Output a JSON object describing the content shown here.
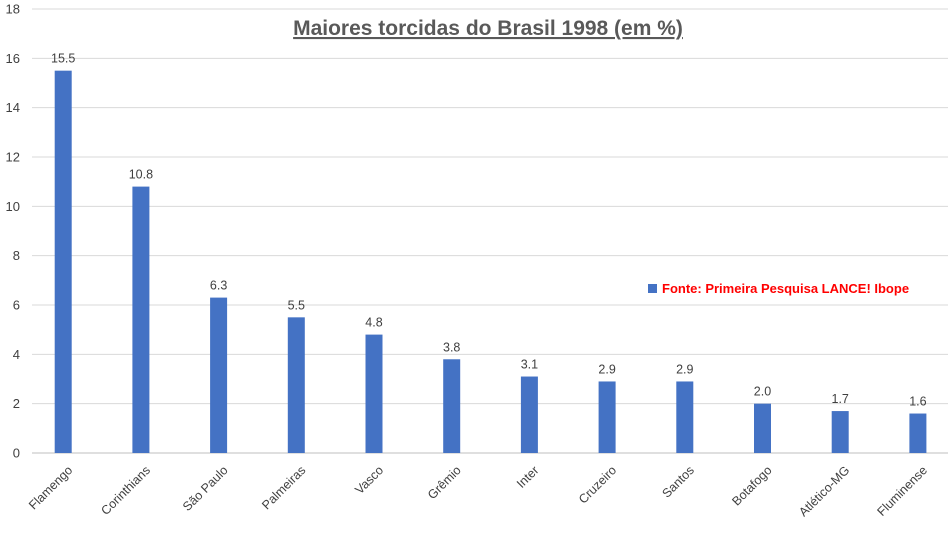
{
  "chart_data": {
    "type": "bar",
    "title": "Maiores torcidas do Brasil 1998 (em %)",
    "categories": [
      "Flamengo",
      "Corinthians",
      "São Paulo",
      "Palmeiras",
      "Vasco",
      "Grêmio",
      "Inter",
      "Cruzeiro",
      "Santos",
      "Botafogo",
      "Atlético-MG",
      "Fluminense"
    ],
    "series": [
      {
        "name": "Fonte:  Primeira Pesquisa LANCE! Ibope",
        "values": [
          15.5,
          10.8,
          6.3,
          5.5,
          4.8,
          3.8,
          3.1,
          2.9,
          2.9,
          2.0,
          1.7,
          1.6
        ],
        "color": "#4472c4"
      }
    ],
    "data_labels": [
      "15.5",
      "10.8",
      "6.3",
      "5.5",
      "4.8",
      "3.8",
      "3.1",
      "2.9",
      "2.9",
      "2.0",
      "1.7",
      "1.6"
    ],
    "ylim": [
      0,
      18
    ],
    "yticks": [
      "0",
      "2",
      "4",
      "6",
      "8",
      "10",
      "12",
      "14",
      "16",
      "18"
    ],
    "grid": true,
    "legend_position": "right",
    "legend_color": "#ff0000",
    "xlabel": "",
    "ylabel": ""
  }
}
